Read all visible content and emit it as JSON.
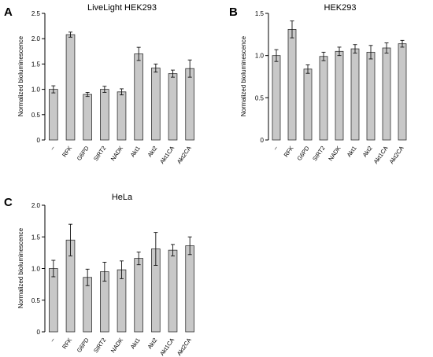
{
  "chart_data": [
    {
      "type": "bar",
      "panel_label": "A",
      "title": "LiveLight HEK293",
      "ylabel": "Normalized bioluminescence",
      "xlabel": "",
      "categories": [
        "–",
        "RFK",
        "G6PD",
        "SIRT2",
        "NADK",
        "Akt1",
        "Akt2",
        "Akt1CA",
        "Akt2CA"
      ],
      "values": [
        1.0,
        2.08,
        0.9,
        1.0,
        0.95,
        1.7,
        1.42,
        1.31,
        1.41
      ],
      "errors": [
        0.07,
        0.05,
        0.04,
        0.06,
        0.06,
        0.13,
        0.08,
        0.07,
        0.17
      ],
      "ylim": [
        0,
        2.5
      ],
      "yticks": [
        "0",
        "0.5",
        "1.0",
        "1.5",
        "2.0",
        "2.5"
      ],
      "grid": false,
      "bar_color": "#c8c8c8"
    },
    {
      "type": "bar",
      "panel_label": "B",
      "title": "HEK293",
      "ylabel": "Normalized bioluminescence",
      "xlabel": "",
      "categories": [
        "–",
        "RFK",
        "G6PD",
        "SIRT2",
        "NADK",
        "Akt1",
        "Akt2",
        "Akt1CA",
        "Akt2CA"
      ],
      "values": [
        1.0,
        1.31,
        0.84,
        0.99,
        1.05,
        1.08,
        1.04,
        1.09,
        1.14
      ],
      "errors": [
        0.07,
        0.1,
        0.05,
        0.05,
        0.05,
        0.05,
        0.08,
        0.06,
        0.04
      ],
      "ylim": [
        0,
        1.5
      ],
      "yticks": [
        "0",
        "0.5",
        "1.0",
        "1.5"
      ],
      "grid": false,
      "bar_color": "#c8c8c8"
    },
    {
      "type": "bar",
      "panel_label": "C",
      "title": "HeLa",
      "ylabel": "Normalized bioluminescence",
      "xlabel": "",
      "categories": [
        "–",
        "RFK",
        "G6PD",
        "SIRT2",
        "NADK",
        "Akt1",
        "Akt2",
        "Akt1CA",
        "Akt2CA"
      ],
      "values": [
        1.0,
        1.45,
        0.86,
        0.95,
        0.98,
        1.16,
        1.31,
        1.29,
        1.36
      ],
      "errors": [
        0.13,
        0.25,
        0.13,
        0.15,
        0.14,
        0.1,
        0.26,
        0.09,
        0.14
      ],
      "ylim": [
        0,
        2.0
      ],
      "yticks": [
        "0",
        "0.5",
        "1.0",
        "1.5",
        "2.0"
      ],
      "grid": false,
      "bar_color": "#c8c8c8"
    }
  ]
}
